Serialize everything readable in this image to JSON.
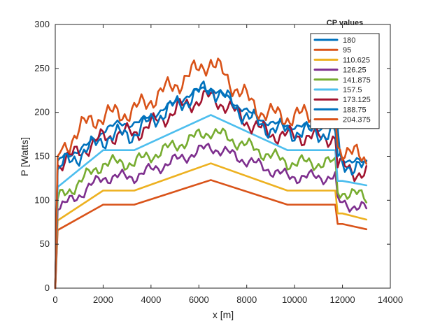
{
  "chart_data": {
    "type": "line",
    "title": "",
    "xlabel": "x [m]",
    "ylabel": "P [Watts]",
    "xlim": [
      0,
      14000
    ],
    "ylim": [
      0,
      300
    ],
    "xticks": [
      0,
      2000,
      4000,
      6000,
      8000,
      10000,
      12000,
      14000
    ],
    "yticks": [
      0,
      50,
      100,
      150,
      200,
      250,
      300
    ],
    "grid": false,
    "legend": {
      "title": "CP values",
      "placement": "top-right inside"
    },
    "series": [
      {
        "name": "180",
        "color": "#0072BD",
        "noisy": true,
        "points": [
          [
            0,
            0
          ],
          [
            100,
            145
          ],
          [
            300,
            148
          ],
          [
            600,
            152
          ],
          [
            1000,
            158
          ],
          [
            1500,
            165
          ],
          [
            1800,
            172
          ],
          [
            2000,
            180
          ],
          [
            2200,
            183
          ],
          [
            2600,
            186
          ],
          [
            3000,
            187
          ],
          [
            3300,
            188
          ],
          [
            3600,
            190
          ],
          [
            4000,
            196
          ],
          [
            4400,
            202
          ],
          [
            4800,
            208
          ],
          [
            5200,
            214
          ],
          [
            5600,
            220
          ],
          [
            6000,
            225
          ],
          [
            6300,
            227
          ],
          [
            6500,
            228
          ],
          [
            6700,
            225
          ],
          [
            7000,
            220
          ],
          [
            7400,
            212
          ],
          [
            7800,
            205
          ],
          [
            8200,
            198
          ],
          [
            8600,
            192
          ],
          [
            9000,
            188
          ],
          [
            9400,
            186
          ],
          [
            9800,
            185
          ],
          [
            10200,
            184
          ],
          [
            10600,
            184
          ],
          [
            11000,
            183
          ],
          [
            11400,
            183
          ],
          [
            11800,
            182
          ],
          [
            11900,
            150
          ],
          [
            12200,
            146
          ],
          [
            12600,
            144
          ],
          [
            13000,
            142
          ]
        ]
      },
      {
        "name": "95",
        "color": "#D95319",
        "noisy": false,
        "points": [
          [
            0,
            0
          ],
          [
            100,
            66
          ],
          [
            2000,
            95
          ],
          [
            3300,
            95
          ],
          [
            6500,
            123
          ],
          [
            9700,
            95
          ],
          [
            11700,
            95
          ],
          [
            11800,
            73
          ],
          [
            12000,
            73
          ],
          [
            13000,
            67
          ]
        ]
      },
      {
        "name": "110.625",
        "color": "#EDB120",
        "noisy": false,
        "points": [
          [
            0,
            0
          ],
          [
            100,
            77
          ],
          [
            2000,
            111
          ],
          [
            3300,
            111
          ],
          [
            6500,
            142
          ],
          [
            9700,
            111
          ],
          [
            11700,
            111
          ],
          [
            11800,
            85
          ],
          [
            12000,
            85
          ],
          [
            13000,
            78
          ]
        ]
      },
      {
        "name": "126.25",
        "color": "#7E2F8E",
        "noisy": true,
        "points": [
          [
            0,
            0
          ],
          [
            100,
            89
          ],
          [
            2000,
            126
          ],
          [
            3300,
            127
          ],
          [
            6500,
            161
          ],
          [
            9700,
            127
          ],
          [
            11700,
            126
          ],
          [
            11800,
            97
          ],
          [
            12000,
            97
          ],
          [
            13000,
            90
          ]
        ]
      },
      {
        "name": "141.875",
        "color": "#77AC30",
        "noisy": true,
        "points": [
          [
            0,
            0
          ],
          [
            100,
            101
          ],
          [
            2000,
            142
          ],
          [
            3300,
            143
          ],
          [
            6500,
            179
          ],
          [
            9700,
            143
          ],
          [
            11700,
            142
          ],
          [
            11800,
            110
          ],
          [
            12000,
            110
          ],
          [
            13000,
            103
          ]
        ]
      },
      {
        "name": "157.5",
        "color": "#4DBEEE",
        "noisy": false,
        "points": [
          [
            0,
            0
          ],
          [
            100,
            115
          ],
          [
            2000,
            157
          ],
          [
            3300,
            157
          ],
          [
            6500,
            197
          ],
          [
            9700,
            157
          ],
          [
            11700,
            157
          ],
          [
            11800,
            122
          ],
          [
            12000,
            122
          ],
          [
            13000,
            117
          ]
        ]
      },
      {
        "name": "173.125",
        "color": "#A2142F",
        "noisy": true,
        "points": [
          [
            0,
            0
          ],
          [
            100,
            140
          ],
          [
            600,
            148
          ],
          [
            1000,
            156
          ],
          [
            1500,
            162
          ],
          [
            1800,
            168
          ],
          [
            2000,
            172
          ],
          [
            2400,
            174
          ],
          [
            3000,
            176
          ],
          [
            3300,
            177
          ],
          [
            3600,
            180
          ],
          [
            4000,
            186
          ],
          [
            4400,
            192
          ],
          [
            4800,
            198
          ],
          [
            5200,
            205
          ],
          [
            5600,
            210
          ],
          [
            6000,
            214
          ],
          [
            6300,
            216
          ],
          [
            6500,
            217
          ],
          [
            6700,
            215
          ],
          [
            7000,
            210
          ],
          [
            7400,
            202
          ],
          [
            7800,
            194
          ],
          [
            8200,
            186
          ],
          [
            8600,
            180
          ],
          [
            9000,
            176
          ],
          [
            9400,
            174
          ],
          [
            9800,
            173
          ],
          [
            10200,
            173
          ],
          [
            10600,
            172
          ],
          [
            11000,
            172
          ],
          [
            11400,
            172
          ],
          [
            11700,
            172
          ],
          [
            11800,
            140
          ],
          [
            12200,
            136
          ],
          [
            12600,
            132
          ],
          [
            13000,
            130
          ]
        ]
      },
      {
        "name": "188.75",
        "color": "#0072BD",
        "noisy": true,
        "points": [
          [
            0,
            0
          ],
          [
            100,
            135
          ],
          [
            600,
            145
          ],
          [
            1000,
            152
          ],
          [
            1500,
            160
          ],
          [
            1800,
            166
          ],
          [
            2000,
            170
          ],
          [
            2400,
            173
          ],
          [
            3000,
            175
          ],
          [
            3300,
            176
          ],
          [
            3600,
            182
          ],
          [
            4000,
            190
          ],
          [
            4400,
            198
          ],
          [
            4800,
            204
          ],
          [
            5200,
            210
          ],
          [
            5600,
            216
          ],
          [
            6000,
            222
          ],
          [
            6300,
            226
          ],
          [
            6500,
            228
          ],
          [
            6700,
            224
          ],
          [
            7000,
            218
          ],
          [
            7400,
            210
          ],
          [
            7800,
            200
          ],
          [
            8200,
            192
          ],
          [
            8600,
            186
          ],
          [
            9000,
            182
          ],
          [
            9400,
            180
          ],
          [
            9800,
            178
          ],
          [
            10200,
            178
          ],
          [
            10600,
            177
          ],
          [
            11000,
            177
          ],
          [
            11400,
            176
          ],
          [
            11700,
            176
          ],
          [
            11800,
            145
          ],
          [
            12200,
            141
          ],
          [
            12600,
            137
          ],
          [
            13000,
            135
          ]
        ]
      },
      {
        "name": "204.375",
        "color": "#D95319",
        "noisy": true,
        "points": [
          [
            0,
            0
          ],
          [
            100,
            150
          ],
          [
            400,
            160
          ],
          [
            800,
            175
          ],
          [
            1200,
            185
          ],
          [
            1600,
            192
          ],
          [
            2000,
            196
          ],
          [
            2400,
            198
          ],
          [
            3000,
            200
          ],
          [
            3300,
            202
          ],
          [
            3600,
            208
          ],
          [
            4000,
            215
          ],
          [
            4400,
            222
          ],
          [
            4800,
            228
          ],
          [
            5200,
            235
          ],
          [
            5600,
            242
          ],
          [
            6000,
            250
          ],
          [
            6300,
            256
          ],
          [
            6500,
            258
          ],
          [
            6700,
            252
          ],
          [
            7000,
            244
          ],
          [
            7400,
            232
          ],
          [
            7800,
            222
          ],
          [
            8200,
            210
          ],
          [
            8600,
            202
          ],
          [
            9000,
            198
          ],
          [
            9400,
            196
          ],
          [
            9800,
            195
          ],
          [
            10200,
            196
          ],
          [
            10600,
            197
          ],
          [
            11000,
            198
          ],
          [
            11400,
            200
          ],
          [
            11700,
            200
          ],
          [
            11800,
            162
          ],
          [
            12200,
            156
          ],
          [
            12600,
            150
          ],
          [
            13000,
            146
          ]
        ]
      }
    ]
  }
}
